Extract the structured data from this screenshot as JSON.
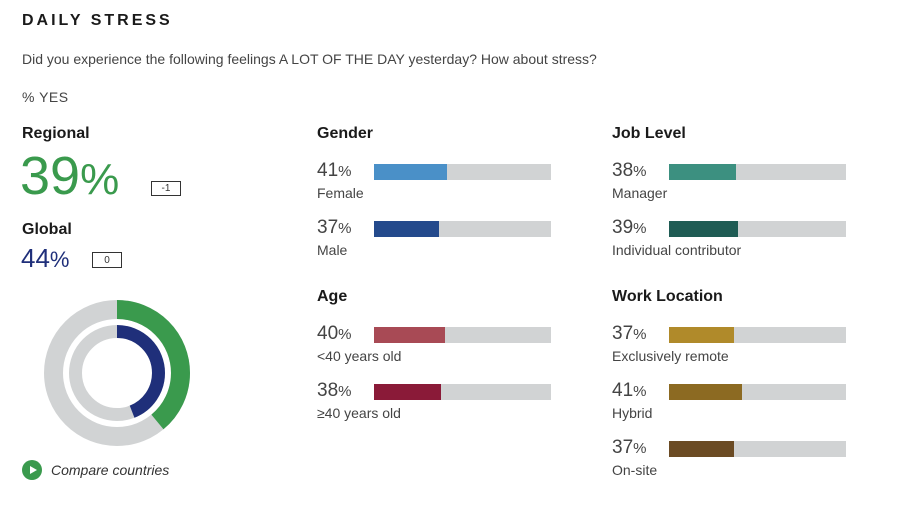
{
  "header": {
    "title": "DAILY STRESS",
    "question": "Did you experience the following feelings A LOT OF THE DAY yesterday? How about stress?",
    "unit": "% YES"
  },
  "regional": {
    "label": "Regional",
    "value": "39",
    "pct": "%",
    "change": "-1",
    "color": "#3a9a4d"
  },
  "global": {
    "label": "Global",
    "value": "44",
    "pct": "%",
    "change": "0",
    "color": "#1f2f7a"
  },
  "compare": {
    "label": "Compare countries",
    "icon": "play-circle-icon"
  },
  "chart_data": {
    "type": "bar",
    "scale_max": 100,
    "track_color": "#d1d3d4",
    "donut": {
      "outer": {
        "series": "Regional",
        "value": 39,
        "color": "#3a9a4d"
      },
      "inner": {
        "series": "Global",
        "value": 44,
        "color": "#1f2f7a"
      }
    },
    "groups": [
      {
        "key": "gender",
        "title": "Gender",
        "rows": [
          {
            "label": "Female",
            "value": 41,
            "color": "#4a90c8"
          },
          {
            "label": "Male",
            "value": 37,
            "color": "#244a8c"
          }
        ]
      },
      {
        "key": "age",
        "title": "Age",
        "rows": [
          {
            "label": "<40 years old",
            "value": 40,
            "color": "#a84a55"
          },
          {
            "label": "≥40 years old",
            "value": 38,
            "color": "#8a1a38"
          }
        ]
      },
      {
        "key": "job",
        "title": "Job Level",
        "rows": [
          {
            "label": "Manager",
            "value": 38,
            "color": "#3c9080"
          },
          {
            "label": "Individual contributor",
            "value": 39,
            "color": "#1f5c54"
          }
        ]
      },
      {
        "key": "work",
        "title": "Work Location",
        "rows": [
          {
            "label": "Exclusively remote",
            "value": 37,
            "color": "#b08a2a"
          },
          {
            "label": "Hybrid",
            "value": 41,
            "color": "#8c6a22"
          },
          {
            "label": "On-site",
            "value": 37,
            "color": "#6b4b24"
          }
        ]
      }
    ]
  }
}
